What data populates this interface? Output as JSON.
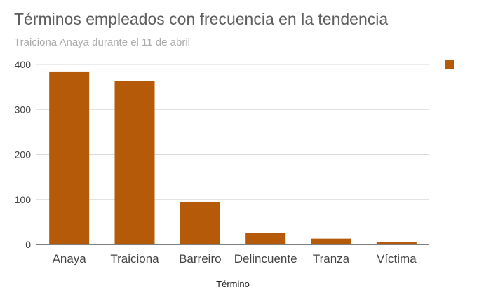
{
  "chart_data": {
    "type": "bar",
    "title": "Términos empleados con frecuencia en la tendencia",
    "subtitle": "Traiciona Anaya durante el 11 de abril",
    "xlabel": "Término",
    "ylabel": "",
    "categories": [
      "Anaya",
      "Traiciona",
      "Barreiro",
      "Delincuente",
      "Tranza",
      "Víctima"
    ],
    "values": [
      383,
      364,
      95,
      26,
      13,
      6
    ],
    "ylim": [
      0,
      400
    ],
    "yticks": [
      "0",
      "100",
      "200",
      "300",
      "400"
    ],
    "grid": true,
    "legend": "top-right",
    "bar_color": "#b45a08"
  }
}
